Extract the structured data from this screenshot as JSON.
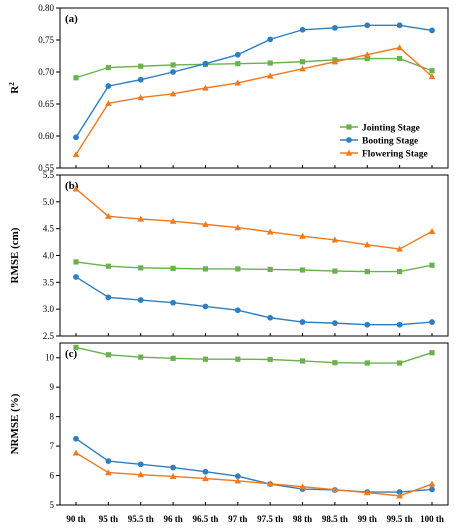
{
  "chart_data": {
    "type": "line",
    "categories": [
      "90 th",
      "95 th",
      "95.5 th",
      "96 th",
      "96.5 th",
      "97 th",
      "97.5 th",
      "98 th",
      "98.5 th",
      "99 th",
      "99.5 th",
      "100 th"
    ],
    "legend": {
      "placement": "inside-lower-right of panel (a)",
      "entries": [
        "Jointing Stage",
        "Booting Stage",
        "Flowering Stage"
      ]
    },
    "series_style": [
      {
        "name": "Jointing Stage",
        "color": "#6ab150",
        "marker": "square"
      },
      {
        "name": "Booting Stage",
        "color": "#2e7fc2",
        "marker": "circle"
      },
      {
        "name": "Flowering Stage",
        "color": "#f07a1f",
        "marker": "triangle"
      }
    ],
    "panels": [
      {
        "label": "(a)",
        "ylabel": "R",
        "ylabel_sup": "2",
        "ylim": [
          0.55,
          0.8
        ],
        "yticks": [
          "0.55",
          "0.60",
          "0.65",
          "0.70",
          "0.75",
          "0.80"
        ],
        "series": [
          {
            "name": "Jointing Stage",
            "values": [
              0.691,
              0.707,
              0.709,
              0.711,
              0.712,
              0.713,
              0.714,
              0.716,
              0.719,
              0.721,
              0.721,
              0.702
            ]
          },
          {
            "name": "Booting Stage",
            "values": [
              0.598,
              0.678,
              0.688,
              0.7,
              0.713,
              0.727,
              0.751,
              0.766,
              0.769,
              0.773,
              0.773,
              0.765
            ]
          },
          {
            "name": "Flowering Stage",
            "values": [
              0.571,
              0.651,
              0.66,
              0.666,
              0.675,
              0.683,
              0.694,
              0.705,
              0.716,
              0.727,
              0.738,
              0.693
            ]
          }
        ]
      },
      {
        "label": "(b)",
        "ylabel": "RMSE (cm)",
        "ylim": [
          2.5,
          5.5
        ],
        "yticks": [
          "2.5",
          "3.0",
          "3.5",
          "4.0",
          "4.5",
          "5.0",
          "5.5"
        ],
        "series": [
          {
            "name": "Jointing Stage",
            "values": [
              3.88,
              3.8,
              3.77,
              3.76,
              3.75,
              3.75,
              3.74,
              3.73,
              3.71,
              3.7,
              3.7,
              3.82
            ]
          },
          {
            "name": "Booting Stage",
            "values": [
              3.6,
              3.22,
              3.17,
              3.12,
              3.05,
              2.98,
              2.84,
              2.76,
              2.74,
              2.71,
              2.71,
              2.76
            ]
          },
          {
            "name": "Flowering Stage",
            "values": [
              5.24,
              4.73,
              4.68,
              4.64,
              4.58,
              4.52,
              4.44,
              4.36,
              4.29,
              4.2,
              4.12,
              4.45
            ]
          }
        ]
      },
      {
        "label": "(c)",
        "ylabel": "NRMSE (%)",
        "ylim": [
          5,
          10.5
        ],
        "yticks": [
          "5",
          "6",
          "7",
          "8",
          "9",
          "10"
        ],
        "series": [
          {
            "name": "Jointing Stage",
            "values": [
              10.35,
              10.1,
              10.02,
              9.98,
              9.95,
              9.95,
              9.94,
              9.89,
              9.83,
              9.82,
              9.82,
              10.17
            ]
          },
          {
            "name": "Booting Stage",
            "values": [
              7.25,
              6.49,
              6.38,
              6.27,
              6.13,
              5.98,
              5.71,
              5.54,
              5.51,
              5.44,
              5.44,
              5.53
            ]
          },
          {
            "name": "Flowering Stage",
            "values": [
              6.77,
              6.1,
              6.03,
              5.97,
              5.9,
              5.82,
              5.72,
              5.62,
              5.52,
              5.42,
              5.31,
              5.71
            ]
          }
        ]
      }
    ]
  }
}
